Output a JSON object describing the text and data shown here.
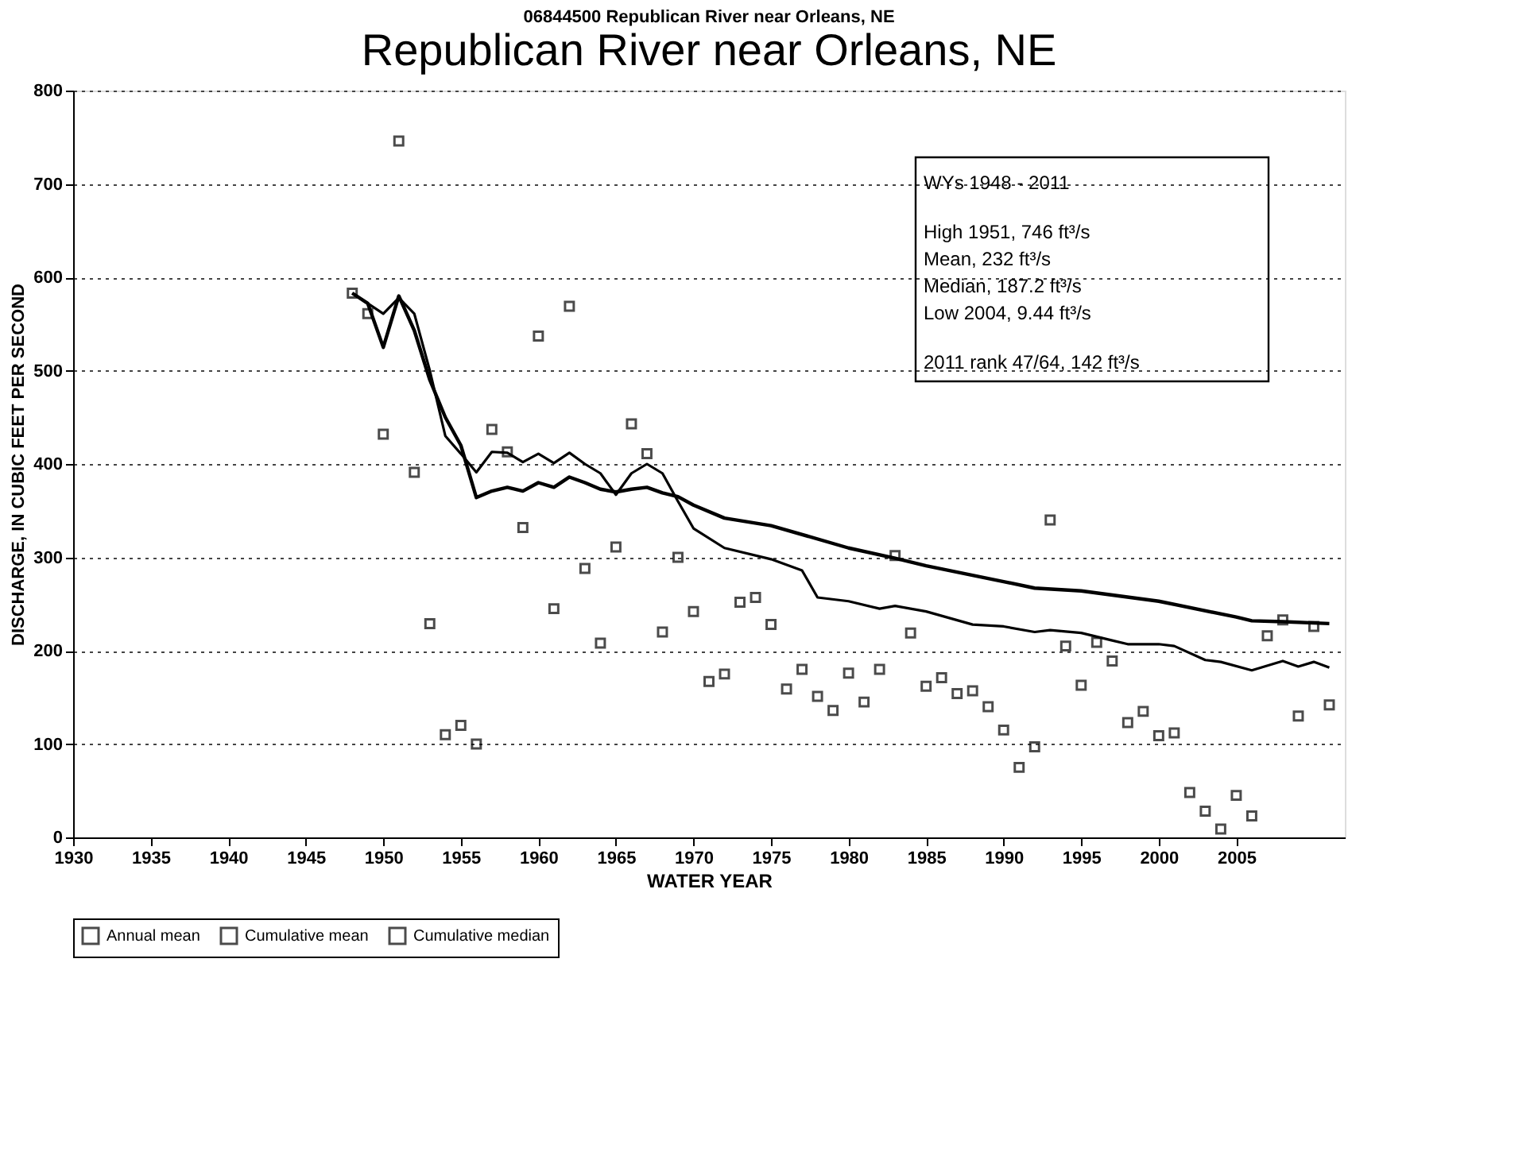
{
  "chart_data": {
    "type": "scatter",
    "title": "06844500  Republican River near Orleans, NE",
    "subtitle": "Republican River near Orleans, NE",
    "xlabel": "WATER YEAR",
    "ylabel": "DISCHARGE, IN CUBIC FEET PER SECOND",
    "xlim": [
      1930,
      2012
    ],
    "xticks": [
      1930,
      1935,
      1940,
      1945,
      1950,
      1955,
      1960,
      1965,
      1970,
      1975,
      1980,
      1985,
      1990,
      1995,
      2000,
      2005
    ],
    "ylim": [
      0,
      800
    ],
    "yticks": [
      0,
      100,
      200,
      300,
      400,
      500,
      600,
      700,
      800
    ],
    "grid": "y",
    "legend": "bottom",
    "annotations": [
      "WYs 1948 - 2011",
      "High 1951, 746 ft³/s",
      "Mean, 232 ft³/s",
      "Median, 187.2 ft³/s",
      "Low 2004, 9.44 ft³/s",
      "2011 rank 47/64, 142 ft³/s"
    ],
    "series": [
      {
        "name": "Annual mean",
        "marker": "square",
        "color": "#000000",
        "x": [
          1948,
          1949,
          1950,
          1951,
          1952,
          1953,
          1954,
          1955,
          1956,
          1957,
          1958,
          1959,
          1960,
          1961,
          1962,
          1963,
          1964,
          1965,
          1966,
          1967,
          1968,
          1969,
          1970,
          1971,
          1972,
          1973,
          1974,
          1975,
          1976,
          1977,
          1978,
          1979,
          1980,
          1981,
          1982,
          1983,
          1984,
          1985,
          1986,
          1987,
          1988,
          1989,
          1990,
          1991,
          1992,
          1993,
          1994,
          1995,
          1996,
          1997,
          1998,
          1999,
          2000,
          2001,
          2002,
          2003,
          2004,
          2005,
          2006,
          2007,
          2008,
          2009,
          2010,
          2011
        ],
        "values": [
          583,
          561,
          432,
          746,
          391,
          229,
          110,
          120,
          100,
          437,
          413,
          332,
          537,
          245,
          569,
          288,
          208,
          311,
          443,
          411,
          220,
          300,
          242,
          167,
          175,
          252,
          257,
          228,
          159,
          180,
          151,
          136,
          176,
          145,
          180,
          302,
          219,
          162,
          171,
          154,
          157,
          140,
          115,
          75,
          97,
          340,
          205,
          163,
          209,
          189,
          123,
          135,
          109,
          112,
          48,
          28,
          9,
          45,
          23,
          216,
          233,
          130,
          226,
          142
        ]
      },
      {
        "name": "Cumulative mean",
        "type": "line",
        "line_style": "solid",
        "color": "#000000",
        "x": [
          1948,
          1949,
          1950,
          1951,
          1952,
          1953,
          1954,
          1955,
          1956,
          1957,
          1958,
          1959,
          1960,
          1961,
          1962,
          1963,
          1964,
          1965,
          1966,
          1967,
          1968,
          1969,
          1970,
          1972,
          1975,
          1980,
          1983,
          1985,
          1990,
          1992,
          1995,
          2000,
          2005,
          2006,
          2008,
          2011
        ],
        "values": [
          583,
          572,
          525,
          580,
          543,
          490,
          450,
          420,
          364,
          371,
          375,
          371,
          380,
          375,
          386,
          380,
          373,
          370,
          373,
          375,
          369,
          365,
          356,
          342,
          334,
          310,
          299,
          291,
          274,
          267,
          264,
          253,
          236,
          232,
          231,
          229
        ]
      },
      {
        "name": "Cumulative median",
        "type": "line",
        "line_style": "solid",
        "color": "#000000",
        "x": [
          1948,
          1949,
          1950,
          1951,
          1952,
          1953,
          1954,
          1955,
          1956,
          1957,
          1958,
          1959,
          1960,
          1961,
          1962,
          1963,
          1964,
          1965,
          1966,
          1967,
          1968,
          1969,
          1970,
          1972,
          1975,
          1977,
          1978,
          1980,
          1982,
          1983,
          1985,
          1988,
          1990,
          1992,
          1993,
          1995,
          1997,
          1998,
          2000,
          2001,
          2003,
          2004,
          2006,
          2008,
          2009,
          2010,
          2011
        ],
        "values": [
          583,
          572,
          561,
          578,
          561,
          500,
          430,
          411,
          391,
          413,
          412,
          402,
          411,
          401,
          412,
          400,
          390,
          367,
          390,
          400,
          390,
          360,
          331,
          310,
          298,
          286,
          257,
          253,
          245,
          248,
          242,
          228,
          226,
          220,
          222,
          219,
          211,
          207,
          207,
          205,
          190,
          188,
          179,
          189,
          183,
          188,
          182
        ]
      }
    ]
  }
}
